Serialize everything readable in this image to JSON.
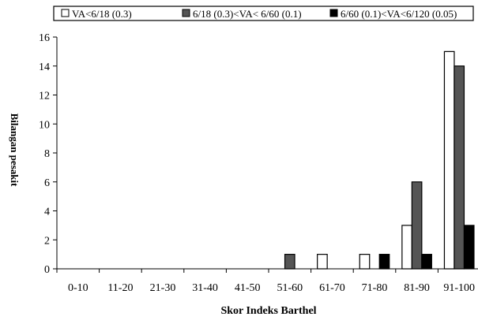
{
  "chart_data": {
    "type": "bar",
    "title": "",
    "xlabel": "Skor Indeks  Barthel",
    "ylabel": "Bilangan pesakit",
    "ylim": [
      0,
      16
    ],
    "yticks": [
      0,
      2,
      4,
      6,
      8,
      10,
      12,
      14,
      16
    ],
    "grid": false,
    "legend_position": "top",
    "categories": [
      "0-10",
      "11-20",
      "21-30",
      "31-40",
      "41-50",
      "51-60",
      "61-70",
      "71-80",
      "81-90",
      "91-100"
    ],
    "series": [
      {
        "name": "VA<6/18 (0.3)",
        "color": "#ffffff",
        "values": [
          0,
          0,
          0,
          0,
          0,
          0,
          1,
          1,
          3,
          15
        ]
      },
      {
        "name": "6/18 (0.3)<VA< 6/60 (0.1)",
        "color": "#555555",
        "values": [
          0,
          0,
          0,
          0,
          0,
          1,
          0,
          0,
          6,
          14
        ]
      },
      {
        "name": "6/60 (0.1)<VA<6/120 (0.05)",
        "color": "#000000",
        "values": [
          0,
          0,
          0,
          0,
          0,
          0,
          0,
          1,
          1,
          3
        ]
      }
    ]
  }
}
